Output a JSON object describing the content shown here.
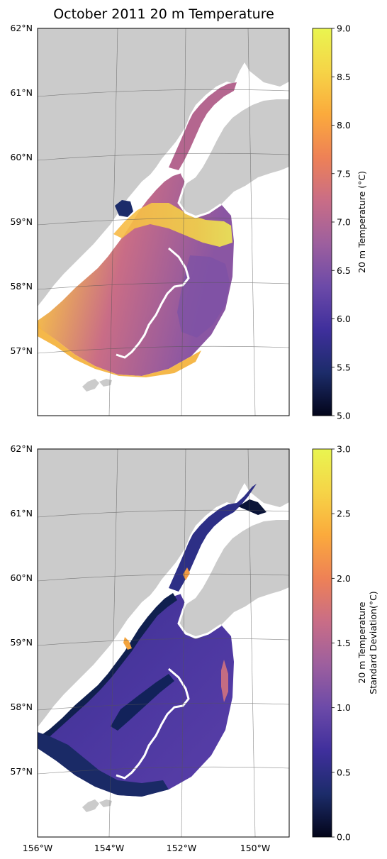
{
  "figure": {
    "title": "October 2011 20 m Temperature"
  },
  "colors": {
    "land": "#cbcbcb",
    "shoreline_gap": "#ffffff",
    "gridline": "#444444",
    "frame": "#000000"
  },
  "map_extent": {
    "lon_range_deg": [
      -156,
      -149
    ],
    "lat_range_deg": [
      56,
      62
    ],
    "lat_ticks": [
      "62°N",
      "61°N",
      "60°N",
      "59°N",
      "58°N",
      "57°N"
    ],
    "lon_ticks": [
      "156°W",
      "154°W",
      "152°W",
      "150°W"
    ]
  },
  "panels": [
    {
      "name": "temperature",
      "colorbar": {
        "label": "20 m Temperature (°C)",
        "min": 5.0,
        "max": 9.0,
        "ticks": [
          "9.0",
          "8.5",
          "8.0",
          "7.5",
          "7.0",
          "6.5",
          "6.0",
          "5.5",
          "5.0"
        ],
        "colormap": [
          "#03051a",
          "#1c2c6a",
          "#3f2f9c",
          "#6c4aa8",
          "#9d5f9e",
          "#c96d86",
          "#ee8156",
          "#fbaa3c",
          "#f6d447",
          "#e9f550"
        ]
      }
    },
    {
      "name": "standard-deviation",
      "colorbar": {
        "label_line1": "20 m Temperature",
        "label_line2": "Standard Deviation(°C)",
        "min": 0.0,
        "max": 3.0,
        "ticks": [
          "3.0",
          "2.5",
          "2.0",
          "1.5",
          "1.0",
          "0.5",
          "0.0"
        ],
        "colormap": [
          "#03051a",
          "#1c2c6a",
          "#3f2f9c",
          "#6c4aa8",
          "#9d5f9e",
          "#c96d86",
          "#ee8156",
          "#fbaa3c",
          "#f6d447",
          "#e9f550"
        ]
      }
    }
  ]
}
